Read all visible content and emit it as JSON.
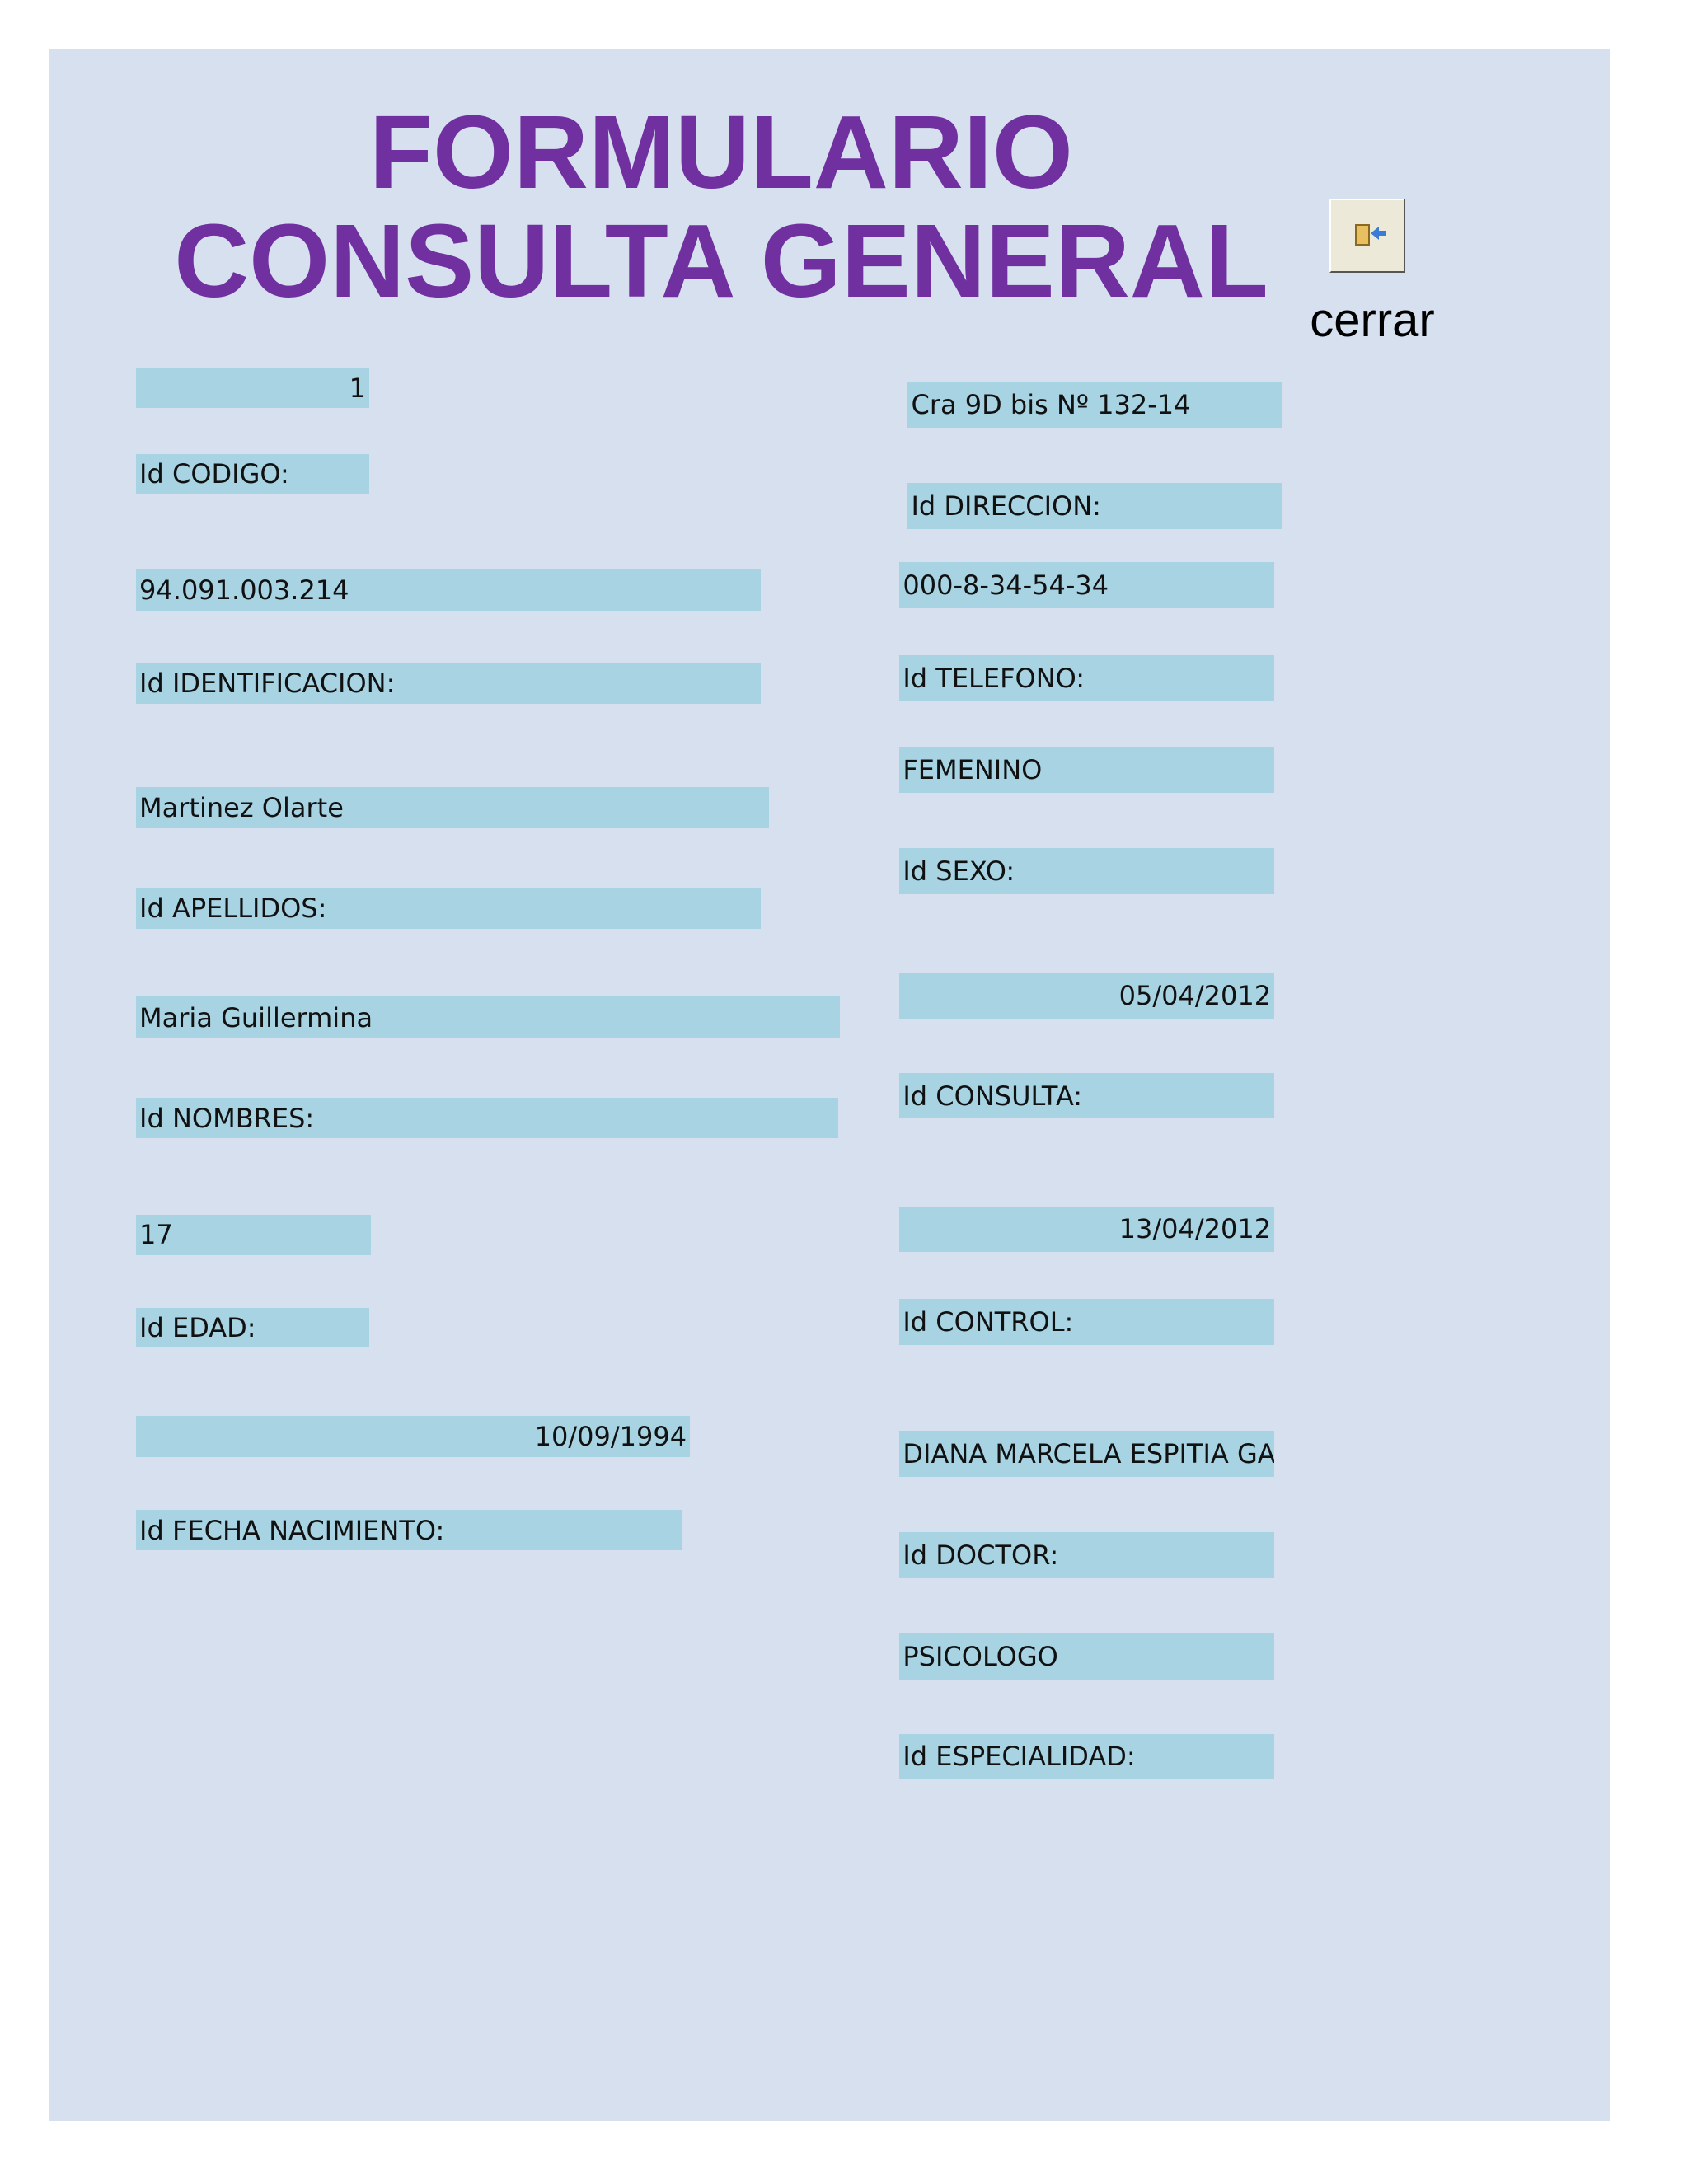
{
  "header": {
    "title": [
      "FORMULARIO",
      "CONSULTA GENERAL"
    ]
  },
  "close_button": {
    "label": "cerrar"
  },
  "fields": [
    {
      "value": "1",
      "label": "Id CODIGO:"
    },
    {
      "value": "94.091.003.214",
      "label": "Id IDENTIFICACION:"
    },
    {
      "value": "Martinez Olarte",
      "label": "Id APELLIDOS:"
    },
    {
      "value": "Maria Guillermina",
      "label": "Id NOMBRES:"
    },
    {
      "value": "17",
      "label": "Id EDAD:"
    },
    {
      "value": "10/09/1994",
      "label": "Id FECHA NACIMIENTO:"
    },
    {
      "value": "Cra 9D bis Nº 132-14",
      "label": "Id DIRECCION:"
    },
    {
      "value": "000-8-34-54-34",
      "label": "Id TELEFONO:"
    },
    {
      "value": "FEMENINO",
      "label": "Id SEXO:"
    },
    {
      "value": "05/04/2012",
      "label": "Id CONSULTA:"
    },
    {
      "value": "13/04/2012",
      "label": "Id CONTROL:"
    },
    {
      "value": "DIANA MARCELA ESPITIA GA",
      "label": "Id DOCTOR:"
    },
    {
      "value": "PSICOLOGO",
      "label": "Id ESPECIALIDAD:"
    }
  ]
}
